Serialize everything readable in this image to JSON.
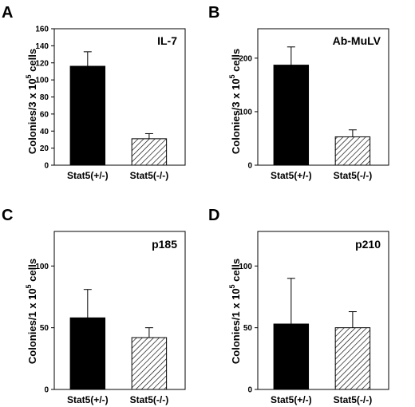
{
  "chart_data": [
    {
      "type": "bar",
      "panel": "A",
      "inset_label": "IL-7",
      "ylabel": {
        "pre": "Colonies/3 x 10",
        "sup": "5",
        "post": " cells"
      },
      "categories": [
        "Stat5(+/-)",
        "Stat5(-/-)"
      ],
      "values": [
        116,
        31
      ],
      "errors": [
        17,
        6
      ],
      "yticks": [
        0,
        20,
        40,
        60,
        80,
        100,
        120,
        140,
        160
      ],
      "ylim": [
        0,
        160
      ],
      "bar_fills": [
        "solid",
        "hatched"
      ]
    },
    {
      "type": "bar",
      "panel": "B",
      "inset_label": "Ab-MuLV",
      "ylabel": {
        "pre": "Colonies/3 x 10",
        "sup": "5",
        "post": " cells"
      },
      "categories": [
        "Stat5(+/-)",
        "Stat5(-/-)"
      ],
      "values": [
        187,
        53
      ],
      "errors": [
        34,
        13
      ],
      "yticks": [
        0,
        100,
        200
      ],
      "ylim": [
        0,
        255
      ],
      "bar_fills": [
        "solid",
        "hatched"
      ]
    },
    {
      "type": "bar",
      "panel": "C",
      "inset_label": "p185",
      "ylabel": {
        "pre": "Colonies/1 x 10",
        "sup": "5",
        "post": " cells"
      },
      "categories": [
        "Stat5(+/-)",
        "Stat5(-/-)"
      ],
      "values": [
        58,
        42
      ],
      "errors": [
        23,
        8
      ],
      "yticks": [
        0,
        50,
        100
      ],
      "ylim": [
        0,
        128
      ],
      "bar_fills": [
        "solid",
        "hatched"
      ]
    },
    {
      "type": "bar",
      "panel": "D",
      "inset_label": "p210",
      "ylabel": {
        "pre": "Colonies/1 x 10",
        "sup": "5",
        "post": " cells"
      },
      "categories": [
        "Stat5(+/-)",
        "Stat5(-/-)"
      ],
      "values": [
        53,
        50
      ],
      "errors": [
        37,
        13
      ],
      "yticks": [
        0,
        50,
        100
      ],
      "ylim": [
        0,
        128
      ],
      "bar_fills": [
        "solid",
        "hatched"
      ]
    }
  ]
}
